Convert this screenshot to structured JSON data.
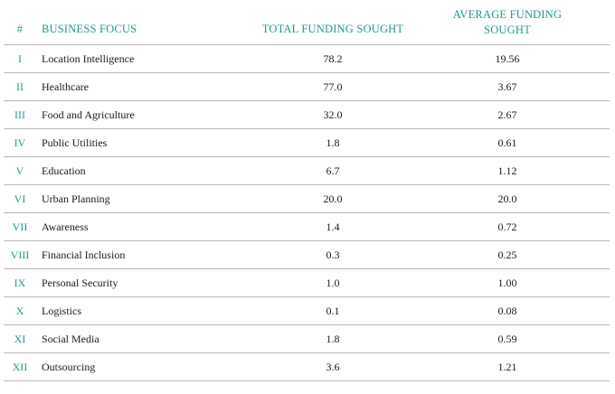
{
  "header": {
    "num": "#",
    "focus": "BUSINESS FOCUS",
    "total": "TOTAL FUNDING SOUGHT",
    "avg_line1": "AVERAGE FUNDING",
    "avg_line2": "SOUGHT"
  },
  "rows": [
    {
      "num": "I",
      "focus": "Location Intelligence",
      "total": "78.2",
      "avg": "19.56"
    },
    {
      "num": "II",
      "focus": "Healthcare",
      "total": "77.0",
      "avg": "3.67"
    },
    {
      "num": "III",
      "focus": "Food and Agriculture",
      "total": "32.0",
      "avg": "2.67"
    },
    {
      "num": "IV",
      "focus": "Public Utilities",
      "total": "1.8",
      "avg": "0.61"
    },
    {
      "num": "V",
      "focus": "Education",
      "total": "6.7",
      "avg": "1.12"
    },
    {
      "num": "VI",
      "focus": "Urban Planning",
      "total": "20.0",
      "avg": "20.0"
    },
    {
      "num": "VII",
      "focus": "Awareness",
      "total": "1.4",
      "avg": "0.72"
    },
    {
      "num": "VIII",
      "focus": "Financial Inclusion",
      "total": "0.3",
      "avg": "0.25"
    },
    {
      "num": "IX",
      "focus": "Personal Security",
      "total": "1.0",
      "avg": "1.00"
    },
    {
      "num": "X",
      "focus": "Logistics",
      "total": "0.1",
      "avg": "0.08"
    },
    {
      "num": "XI",
      "focus": "Social Media",
      "total": "1.8",
      "avg": "0.59"
    },
    {
      "num": "XII",
      "focus": "Outsourcing",
      "total": "3.6",
      "avg": "1.21"
    }
  ],
  "colors": {
    "accent": "#1f9a8f",
    "text": "#1a1a1a",
    "rule": "#b9b9b9"
  }
}
